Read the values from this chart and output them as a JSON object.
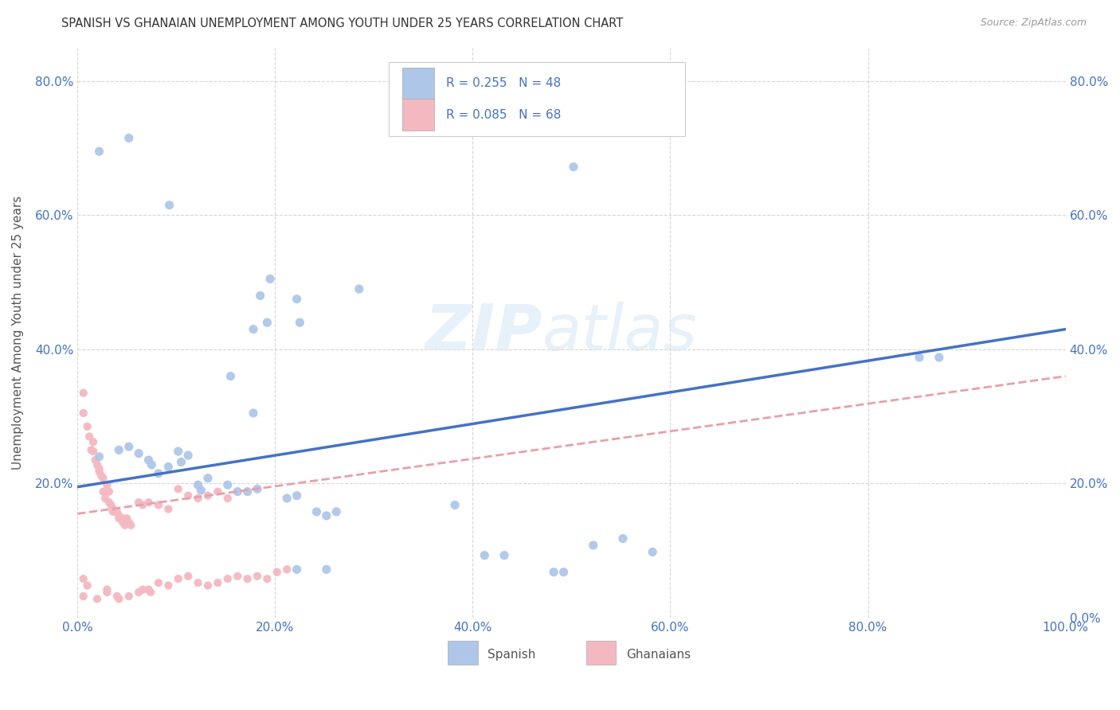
{
  "title": "SPANISH VS GHANAIAN UNEMPLOYMENT AMONG YOUTH UNDER 25 YEARS CORRELATION CHART",
  "source": "Source: ZipAtlas.com",
  "ylabel": "Unemployment Among Youth under 25 years",
  "xlim": [
    0,
    1.0
  ],
  "ylim": [
    0,
    0.85
  ],
  "xtick_labels": [
    "0.0%",
    "20.0%",
    "40.0%",
    "60.0%",
    "80.0%",
    "100.0%"
  ],
  "xtick_vals": [
    0.0,
    0.2,
    0.4,
    0.6,
    0.8,
    1.0
  ],
  "ytick_labels": [
    "0.0%",
    "20.0%",
    "40.0%",
    "60.0%",
    "80.0%"
  ],
  "ytick_vals": [
    0.0,
    0.2,
    0.4,
    0.6,
    0.8
  ],
  "spanish_color": "#aec6e8",
  "ghanaian_color": "#f4b8c1",
  "spanish_line_color": "#4472c4",
  "ghanaian_line_color": "#e8a0aa",
  "text_color": "#4472c4",
  "watermark_zip": "ZIP",
  "watermark_atlas": "atlas",
  "background_color": "#ffffff",
  "spanish_line_y0": 0.195,
  "spanish_line_y1": 0.43,
  "ghanaian_line_y0": 0.155,
  "ghanaian_line_y1": 0.36,
  "spanish_points": [
    [
      0.022,
      0.695
    ],
    [
      0.052,
      0.715
    ],
    [
      0.093,
      0.615
    ],
    [
      0.185,
      0.48
    ],
    [
      0.195,
      0.505
    ],
    [
      0.178,
      0.43
    ],
    [
      0.192,
      0.44
    ],
    [
      0.155,
      0.36
    ],
    [
      0.178,
      0.305
    ],
    [
      0.222,
      0.475
    ],
    [
      0.225,
      0.44
    ],
    [
      0.285,
      0.49
    ],
    [
      0.022,
      0.24
    ],
    [
      0.042,
      0.25
    ],
    [
      0.052,
      0.255
    ],
    [
      0.062,
      0.245
    ],
    [
      0.072,
      0.235
    ],
    [
      0.075,
      0.228
    ],
    [
      0.082,
      0.215
    ],
    [
      0.092,
      0.225
    ],
    [
      0.102,
      0.248
    ],
    [
      0.105,
      0.232
    ],
    [
      0.112,
      0.242
    ],
    [
      0.122,
      0.198
    ],
    [
      0.125,
      0.19
    ],
    [
      0.132,
      0.208
    ],
    [
      0.152,
      0.198
    ],
    [
      0.162,
      0.188
    ],
    [
      0.172,
      0.188
    ],
    [
      0.182,
      0.192
    ],
    [
      0.212,
      0.178
    ],
    [
      0.222,
      0.182
    ],
    [
      0.242,
      0.158
    ],
    [
      0.252,
      0.152
    ],
    [
      0.262,
      0.158
    ],
    [
      0.382,
      0.168
    ],
    [
      0.412,
      0.093
    ],
    [
      0.432,
      0.093
    ],
    [
      0.482,
      0.068
    ],
    [
      0.492,
      0.068
    ],
    [
      0.522,
      0.108
    ],
    [
      0.552,
      0.118
    ],
    [
      0.582,
      0.098
    ],
    [
      0.852,
      0.388
    ],
    [
      0.872,
      0.388
    ],
    [
      0.502,
      0.672
    ],
    [
      0.222,
      0.072
    ],
    [
      0.252,
      0.072
    ]
  ],
  "ghanaian_points": [
    [
      0.006,
      0.335
    ],
    [
      0.006,
      0.305
    ],
    [
      0.01,
      0.285
    ],
    [
      0.012,
      0.27
    ],
    [
      0.014,
      0.25
    ],
    [
      0.016,
      0.262
    ],
    [
      0.016,
      0.248
    ],
    [
      0.018,
      0.235
    ],
    [
      0.02,
      0.228
    ],
    [
      0.022,
      0.222
    ],
    [
      0.022,
      0.218
    ],
    [
      0.024,
      0.212
    ],
    [
      0.026,
      0.208
    ],
    [
      0.026,
      0.188
    ],
    [
      0.028,
      0.178
    ],
    [
      0.03,
      0.198
    ],
    [
      0.032,
      0.188
    ],
    [
      0.032,
      0.172
    ],
    [
      0.034,
      0.168
    ],
    [
      0.036,
      0.162
    ],
    [
      0.036,
      0.158
    ],
    [
      0.04,
      0.158
    ],
    [
      0.042,
      0.152
    ],
    [
      0.042,
      0.148
    ],
    [
      0.046,
      0.148
    ],
    [
      0.046,
      0.142
    ],
    [
      0.048,
      0.138
    ],
    [
      0.05,
      0.148
    ],
    [
      0.052,
      0.142
    ],
    [
      0.054,
      0.138
    ],
    [
      0.062,
      0.172
    ],
    [
      0.066,
      0.168
    ],
    [
      0.072,
      0.172
    ],
    [
      0.082,
      0.168
    ],
    [
      0.092,
      0.162
    ],
    [
      0.102,
      0.192
    ],
    [
      0.112,
      0.182
    ],
    [
      0.122,
      0.178
    ],
    [
      0.132,
      0.182
    ],
    [
      0.142,
      0.188
    ],
    [
      0.152,
      0.178
    ],
    [
      0.006,
      0.032
    ],
    [
      0.006,
      0.058
    ],
    [
      0.01,
      0.048
    ],
    [
      0.02,
      0.028
    ],
    [
      0.03,
      0.038
    ],
    [
      0.03,
      0.042
    ],
    [
      0.04,
      0.032
    ],
    [
      0.042,
      0.028
    ],
    [
      0.052,
      0.032
    ],
    [
      0.062,
      0.038
    ],
    [
      0.066,
      0.042
    ],
    [
      0.072,
      0.042
    ],
    [
      0.074,
      0.038
    ],
    [
      0.082,
      0.052
    ],
    [
      0.092,
      0.048
    ],
    [
      0.102,
      0.058
    ],
    [
      0.112,
      0.062
    ],
    [
      0.122,
      0.052
    ],
    [
      0.132,
      0.048
    ],
    [
      0.142,
      0.052
    ],
    [
      0.152,
      0.058
    ],
    [
      0.162,
      0.062
    ],
    [
      0.172,
      0.058
    ],
    [
      0.182,
      0.062
    ],
    [
      0.192,
      0.058
    ],
    [
      0.202,
      0.068
    ],
    [
      0.212,
      0.072
    ]
  ]
}
